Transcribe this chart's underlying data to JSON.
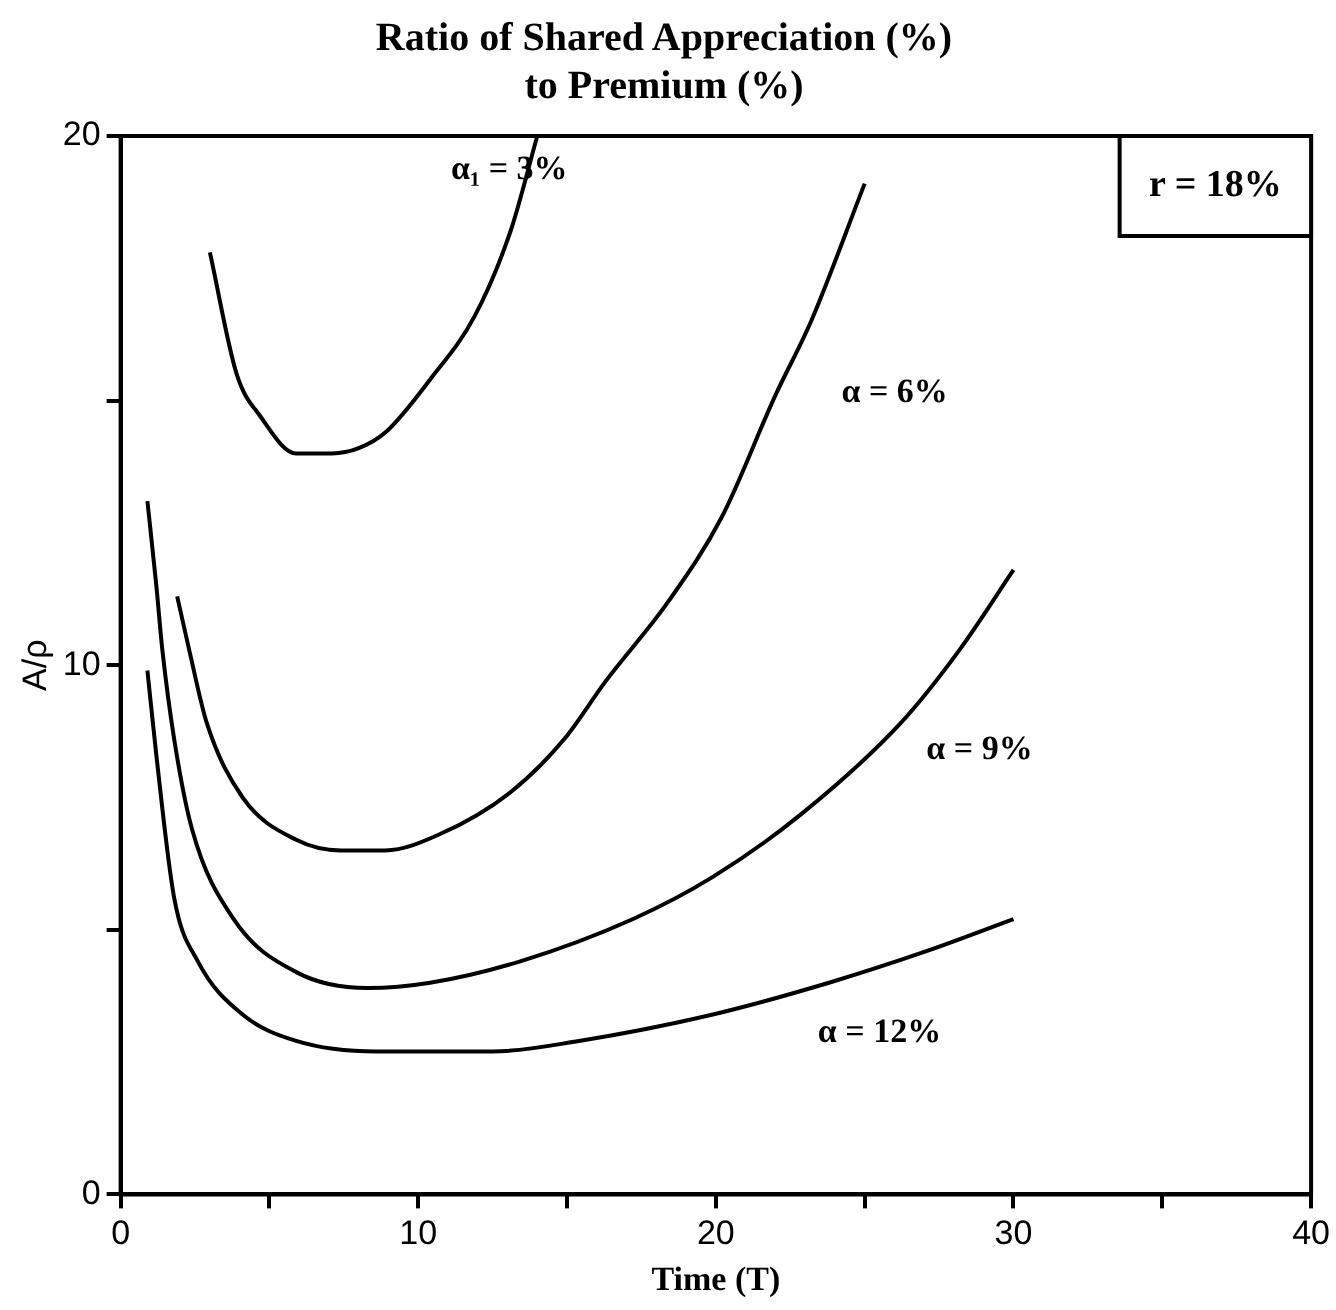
{
  "chart_data": {
    "type": "line",
    "title": "Ratio of Shared Appreciation (%)\nto Premium (%)",
    "xlabel": "Time (T)",
    "ylabel": "A/ρ",
    "xlim": [
      0,
      40
    ],
    "xticks": [
      0,
      {
        "value": 5,
        "label": null
      },
      10,
      {
        "value": 15,
        "label": null
      },
      20,
      {
        "value": 25,
        "label": null
      },
      30,
      {
        "value": 35,
        "label": null
      },
      40
    ],
    "ylim": [
      0,
      20
    ],
    "yticks": [
      0,
      {
        "value": 5,
        "label": null
      },
      10,
      {
        "value": 15,
        "label": null
      },
      20
    ],
    "grid": false,
    "legend": false,
    "marker": "none",
    "line_style": "solid",
    "series": [
      {
        "name": "α₁ = 3%",
        "color": "#000000",
        "x": [
          3.0,
          3.9,
          4.7,
          5.9,
          7.1,
          8.0,
          8.9,
          10.4,
          11.9,
          13.1,
          14.0
        ],
        "values": [
          17.8,
          15.5,
          14.7,
          14.0,
          14.0,
          14.1,
          14.4,
          15.4,
          16.6,
          18.2,
          20
        ]
      },
      {
        "name": "α = 6%",
        "color": "#000000",
        "x": [
          1.9,
          2.3,
          2.9,
          4.1,
          5.9,
          7.4,
          8.9,
          10.7,
          13.1,
          14.9,
          16.3,
          18.4,
          20.2,
          22.0,
          23.2,
          25.0
        ],
        "values": [
          11.3,
          10.3,
          8.9,
          7.5,
          6.7,
          6.5,
          6.5,
          6.8,
          7.6,
          8.6,
          9.7,
          11.2,
          12.8,
          15.1,
          16.5,
          19.1
        ]
      },
      {
        "name": "α = 9%",
        "color": "#000000",
        "x": [
          0.9,
          1.2,
          1.4,
          1.8,
          2.4,
          3.8,
          5.9,
          8.3,
          10.4,
          13.4,
          17.2,
          19.9,
          22.9,
          26.2,
          28.2,
          30.0
        ],
        "values": [
          13.1,
          11.5,
          10.3,
          8.6,
          6.9,
          5.2,
          4.2,
          3.9,
          4.0,
          4.4,
          5.2,
          6.0,
          7.2,
          8.9,
          10.3,
          11.8
        ]
      },
      {
        "name": "α = 12%",
        "color": "#000000",
        "x": [
          0.9,
          1.2,
          1.8,
          2.6,
          4.1,
          5.9,
          8.6,
          12.5,
          15.4,
          19.9,
          23.8,
          27.1,
          30.0
        ],
        "values": [
          9.9,
          8.3,
          5.6,
          4.4,
          3.4,
          2.9,
          2.7,
          2.7,
          2.9,
          3.4,
          4.0,
          4.6,
          5.2
        ]
      }
    ],
    "annotations": [
      "r = 18%"
    ]
  }
}
